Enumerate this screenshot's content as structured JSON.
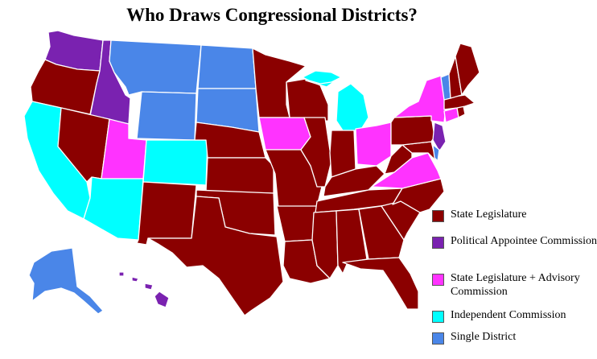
{
  "title": "Who Draws Congressional Districts?",
  "legend": [
    {
      "key": "state_legislature",
      "label": "State Legislature",
      "color": "#8b0000"
    },
    {
      "key": "political_appointee",
      "label": "Political Appointee Commission",
      "color": "#7a22b0"
    },
    {
      "key": "legislature_advisory",
      "label": "State Legislature + Advisory Commission",
      "color": "#ff33ff"
    },
    {
      "key": "independent",
      "label": "Independent Commission",
      "color": "#00ffff"
    },
    {
      "key": "single_district",
      "label": "Single District",
      "color": "#4a86e8"
    }
  ],
  "states": {
    "WA": "political_appointee",
    "ID": "political_appointee",
    "HI": "political_appointee",
    "NJ": "political_appointee",
    "CA": "independent",
    "AZ": "independent",
    "CO": "independent",
    "MI": "independent",
    "UT": "legislature_advisory",
    "IA": "legislature_advisory",
    "OH": "legislature_advisory",
    "NY": "legislature_advisory",
    "VA": "legislature_advisory",
    "CT": "legislature_advisory",
    "MT": "single_district",
    "WY": "single_district",
    "ND": "single_district",
    "SD": "single_district",
    "AK": "single_district",
    "VT": "single_district",
    "DE": "single_district",
    "OR": "state_legislature",
    "NV": "state_legislature",
    "NM": "state_legislature",
    "TX": "state_legislature",
    "NE": "state_legislature",
    "KS": "state_legislature",
    "OK": "state_legislature",
    "MN": "state_legislature",
    "MO": "state_legislature",
    "AR": "state_legislature",
    "LA": "state_legislature",
    "WI": "state_legislature",
    "IL": "state_legislature",
    "IN": "state_legislature",
    "KY": "state_legislature",
    "TN": "state_legislature",
    "MS": "state_legislature",
    "AL": "state_legislature",
    "GA": "state_legislature",
    "FL": "state_legislature",
    "SC": "state_legislature",
    "NC": "state_legislature",
    "WV": "state_legislature",
    "PA": "state_legislature",
    "MD": "state_legislature",
    "NH": "state_legislature",
    "ME": "state_legislature",
    "MA": "state_legislature",
    "RI": "state_legislature"
  }
}
